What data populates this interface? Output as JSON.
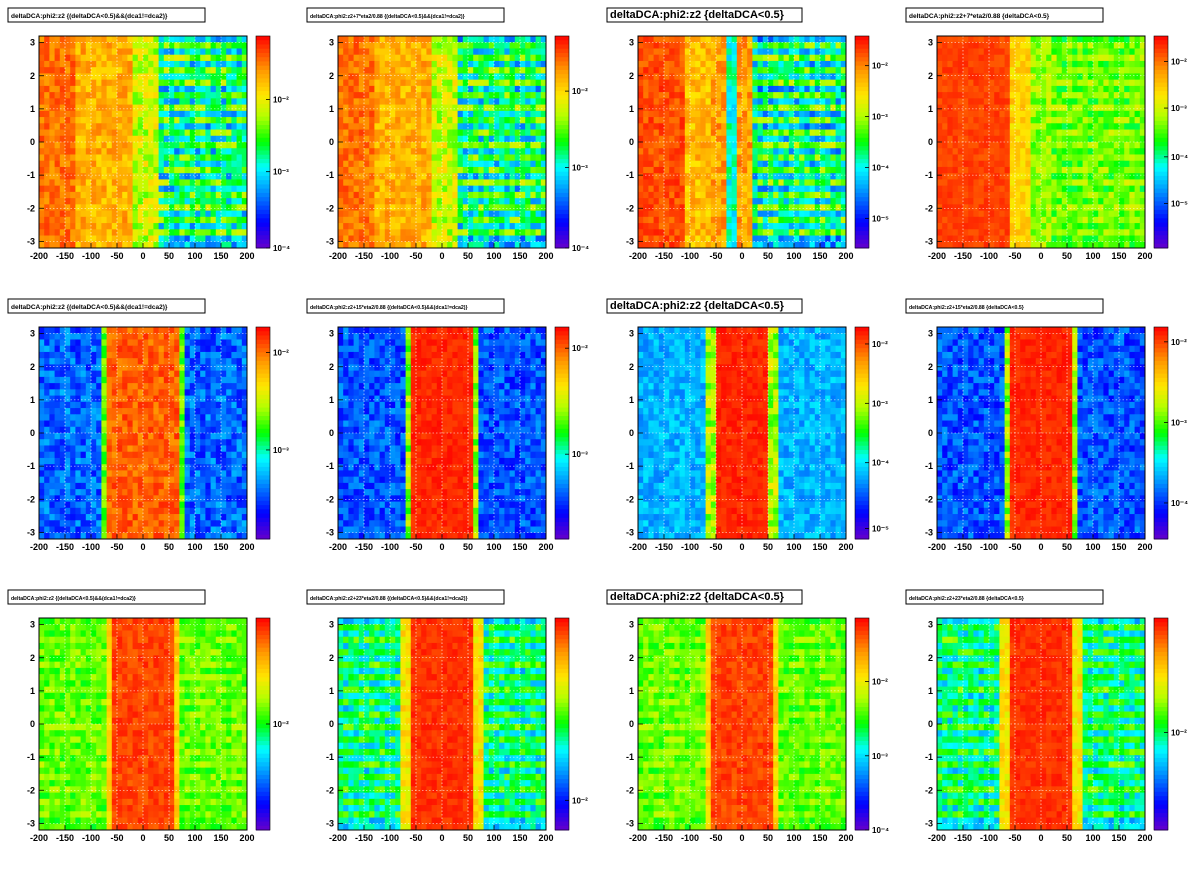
{
  "page": {
    "background": "#ffffff"
  },
  "chart_data": [
    {
      "type": "heatmap",
      "title": "deltaDCA:phi2:z2 {(deltaDCA<0.5)&&(dca1!=dca2)}",
      "title_size": "small",
      "xlim": [
        -200,
        200
      ],
      "ylim": [
        -3.2,
        3.2
      ],
      "xticks": [
        "-200",
        "-150",
        "-100",
        "-50",
        "0",
        "50",
        "100",
        "150",
        "200"
      ],
      "yticks": [
        "-3",
        "-2",
        "-1",
        "0",
        "1",
        "2",
        "3"
      ],
      "z_scale": "log",
      "z_ticks": [
        {
          "label": "10⁻²",
          "level": 0.7
        },
        {
          "label": "10⁻³",
          "level": 0.36
        },
        {
          "label": "10⁻⁴",
          "level": 0.0
        }
      ],
      "pattern": "wide",
      "palette": "rainbow",
      "grid": true
    },
    {
      "type": "heatmap",
      "title": "deltaDCA:phi2:z2+7*eta2/0.88 {(deltaDCA<0.5)&&(dca1!=dca2)}",
      "title_size": "tiny",
      "xlim": [
        -200,
        200
      ],
      "ylim": [
        -3.2,
        3.2
      ],
      "xticks": [
        "-200",
        "-150",
        "-100",
        "-50",
        "0",
        "50",
        "100",
        "150",
        "200"
      ],
      "yticks": [
        "-3",
        "-2",
        "-1",
        "0",
        "1",
        "2",
        "3"
      ],
      "z_scale": "log",
      "z_ticks": [
        {
          "label": "10⁻²",
          "level": 0.74
        },
        {
          "label": "10⁻³",
          "level": 0.38
        },
        {
          "label": "10⁻⁴",
          "level": 0.0
        }
      ],
      "pattern": "wide",
      "palette": "rainbow",
      "grid": true
    },
    {
      "type": "heatmap",
      "title": "deltaDCA:phi2:z2 {deltaDCA<0.5}",
      "title_size": "large",
      "xlim": [
        -200,
        200
      ],
      "ylim": [
        -3.2,
        3.2
      ],
      "xticks": [
        "-200",
        "-150",
        "-100",
        "-50",
        "0",
        "50",
        "100",
        "150",
        "200"
      ],
      "yticks": [
        "-3",
        "-2",
        "-1",
        "0",
        "1",
        "2",
        "3"
      ],
      "z_scale": "log",
      "z_ticks": [
        {
          "label": "10⁻²",
          "level": 0.86
        },
        {
          "label": "10⁻³",
          "level": 0.62
        },
        {
          "label": "10⁻⁴",
          "level": 0.38
        },
        {
          "label": "10⁻⁵",
          "level": 0.14
        }
      ],
      "pattern": "wide_stripes",
      "palette": "rainbow",
      "grid": true
    },
    {
      "type": "heatmap",
      "title": "deltaDCA:phi2:z2+7*eta2/0.88 {deltaDCA<0.5}",
      "title_size": "small",
      "xlim": [
        -200,
        200
      ],
      "ylim": [
        -3.2,
        3.2
      ],
      "xticks": [
        "-200",
        "-150",
        "-100",
        "-50",
        "0",
        "50",
        "100",
        "150",
        "200"
      ],
      "yticks": [
        "-3",
        "-2",
        "-1",
        "0",
        "1",
        "2",
        "3"
      ],
      "z_scale": "log",
      "z_ticks": [
        {
          "label": "10⁻²",
          "level": 0.88
        },
        {
          "label": "10⁻³",
          "level": 0.66
        },
        {
          "label": "10⁻⁴",
          "level": 0.43
        },
        {
          "label": "10⁻⁵",
          "level": 0.21
        }
      ],
      "pattern": "wide_smooth",
      "palette": "rainbow",
      "grid": true
    },
    {
      "type": "heatmap",
      "title": "deltaDCA:phi2:z2 {(deltaDCA<0.5)&&(dca1!=dca2)}",
      "title_size": "small",
      "xlim": [
        -200,
        200
      ],
      "ylim": [
        -3.2,
        3.2
      ],
      "xticks": [
        "-200",
        "-150",
        "-100",
        "-50",
        "0",
        "50",
        "100",
        "150",
        "200"
      ],
      "yticks": [
        "-3",
        "-2",
        "-1",
        "0",
        "1",
        "2",
        "3"
      ],
      "z_scale": "log",
      "z_ticks": [
        {
          "label": "10⁻²",
          "level": 0.88
        },
        {
          "label": "10⁻³",
          "level": 0.42
        }
      ],
      "pattern": "band",
      "palette": "rainbow",
      "grid": true
    },
    {
      "type": "heatmap",
      "title": "deltaDCA:phi2:z2+15*eta2/0.88 {(deltaDCA<0.5)&&(dca1!=dca2)}",
      "title_size": "tiny",
      "xlim": [
        -200,
        200
      ],
      "ylim": [
        -3.2,
        3.2
      ],
      "xticks": [
        "-200",
        "-150",
        "-100",
        "-50",
        "0",
        "50",
        "100",
        "150",
        "200"
      ],
      "yticks": [
        "-3",
        "-2",
        "-1",
        "0",
        "1",
        "2",
        "3"
      ],
      "z_scale": "log",
      "z_ticks": [
        {
          "label": "10⁻²",
          "level": 0.9
        },
        {
          "label": "10⁻³",
          "level": 0.4
        }
      ],
      "pattern": "band_sharp",
      "palette": "rainbow",
      "grid": true
    },
    {
      "type": "heatmap",
      "title": "deltaDCA:phi2:z2 {deltaDCA<0.5}",
      "title_size": "large",
      "xlim": [
        -200,
        200
      ],
      "ylim": [
        -3.2,
        3.2
      ],
      "xticks": [
        "-200",
        "-150",
        "-100",
        "-50",
        "0",
        "50",
        "100",
        "150",
        "200"
      ],
      "yticks": [
        "-3",
        "-2",
        "-1",
        "0",
        "1",
        "2",
        "3"
      ],
      "z_scale": "log",
      "z_ticks": [
        {
          "label": "10⁻²",
          "level": 0.92
        },
        {
          "label": "10⁻³",
          "level": 0.64
        },
        {
          "label": "10⁻⁴",
          "level": 0.36
        },
        {
          "label": "10⁻⁵",
          "level": 0.05
        }
      ],
      "pattern": "band_light",
      "palette": "rainbow",
      "grid": true
    },
    {
      "type": "heatmap",
      "title": "deltaDCA:phi2:z2+15*eta2/0.88 {deltaDCA<0.5}",
      "title_size": "tiny",
      "xlim": [
        -200,
        200
      ],
      "ylim": [
        -3.2,
        3.2
      ],
      "xticks": [
        "-200",
        "-150",
        "-100",
        "-50",
        "0",
        "50",
        "100",
        "150",
        "200"
      ],
      "yticks": [
        "-3",
        "-2",
        "-1",
        "0",
        "1",
        "2",
        "3"
      ],
      "z_scale": "log",
      "z_ticks": [
        {
          "label": "10⁻²",
          "level": 0.93
        },
        {
          "label": "10⁻³",
          "level": 0.55
        },
        {
          "label": "10⁻⁴",
          "level": 0.17
        }
      ],
      "pattern": "band_sharp",
      "palette": "rainbow",
      "grid": true
    },
    {
      "type": "heatmap",
      "title": "deltaDCA:phi2:z2 {(deltaDCA<0.5)&&(dca1!=dca2)}",
      "title_size": "tiny",
      "xlim": [
        -200,
        200
      ],
      "ylim": [
        -3.2,
        3.2
      ],
      "xticks": [
        "-200",
        "-150",
        "-100",
        "-50",
        "0",
        "50",
        "100",
        "150",
        "200"
      ],
      "yticks": [
        "-3",
        "-2",
        "-1",
        "0",
        "1",
        "2",
        "3"
      ],
      "z_scale": "log",
      "z_ticks": [
        {
          "label": "10⁻²",
          "level": 0.5
        }
      ],
      "pattern": "band_green",
      "palette": "rainbow",
      "grid": true
    },
    {
      "type": "heatmap",
      "title": "deltaDCA:phi2:z2+23*eta2/0.88 {(deltaDCA<0.5)&&(dca1!=dca2)}",
      "title_size": "tiny",
      "xlim": [
        -200,
        200
      ],
      "ylim": [
        -3.2,
        3.2
      ],
      "xticks": [
        "-200",
        "-150",
        "-100",
        "-50",
        "0",
        "50",
        "100",
        "150",
        "200"
      ],
      "yticks": [
        "-3",
        "-2",
        "-1",
        "0",
        "1",
        "2",
        "3"
      ],
      "z_scale": "log",
      "z_ticks": [
        {
          "label": "10⁻²",
          "level": 0.14
        }
      ],
      "pattern": "band_mixed",
      "palette": "rainbow",
      "grid": true
    },
    {
      "type": "heatmap",
      "title": "deltaDCA:phi2:z2 {deltaDCA<0.5}",
      "title_size": "large",
      "xlim": [
        -200,
        200
      ],
      "ylim": [
        -3.2,
        3.2
      ],
      "xticks": [
        "-200",
        "-150",
        "-100",
        "-50",
        "0",
        "50",
        "100",
        "150",
        "200"
      ],
      "yticks": [
        "-3",
        "-2",
        "-1",
        "0",
        "1",
        "2",
        "3"
      ],
      "z_scale": "log",
      "z_ticks": [
        {
          "label": "10⁻²",
          "level": 0.7
        },
        {
          "label": "10⁻³",
          "level": 0.35
        },
        {
          "label": "10⁻⁴",
          "level": 0.0
        }
      ],
      "pattern": "band_green",
      "palette": "rainbow",
      "grid": true
    },
    {
      "type": "heatmap",
      "title": "deltaDCA:phi2:z2+23*eta2/0.88 {deltaDCA<0.5}",
      "title_size": "tiny",
      "xlim": [
        -200,
        200
      ],
      "ylim": [
        -3.2,
        3.2
      ],
      "xticks": [
        "-200",
        "-150",
        "-100",
        "-50",
        "0",
        "50",
        "100",
        "150",
        "200"
      ],
      "yticks": [
        "-3",
        "-2",
        "-1",
        "0",
        "1",
        "2",
        "3"
      ],
      "z_scale": "log",
      "z_ticks": [
        {
          "label": "10⁻²",
          "level": 0.46
        }
      ],
      "pattern": "band_mixed",
      "palette": "rainbow",
      "grid": true
    }
  ]
}
